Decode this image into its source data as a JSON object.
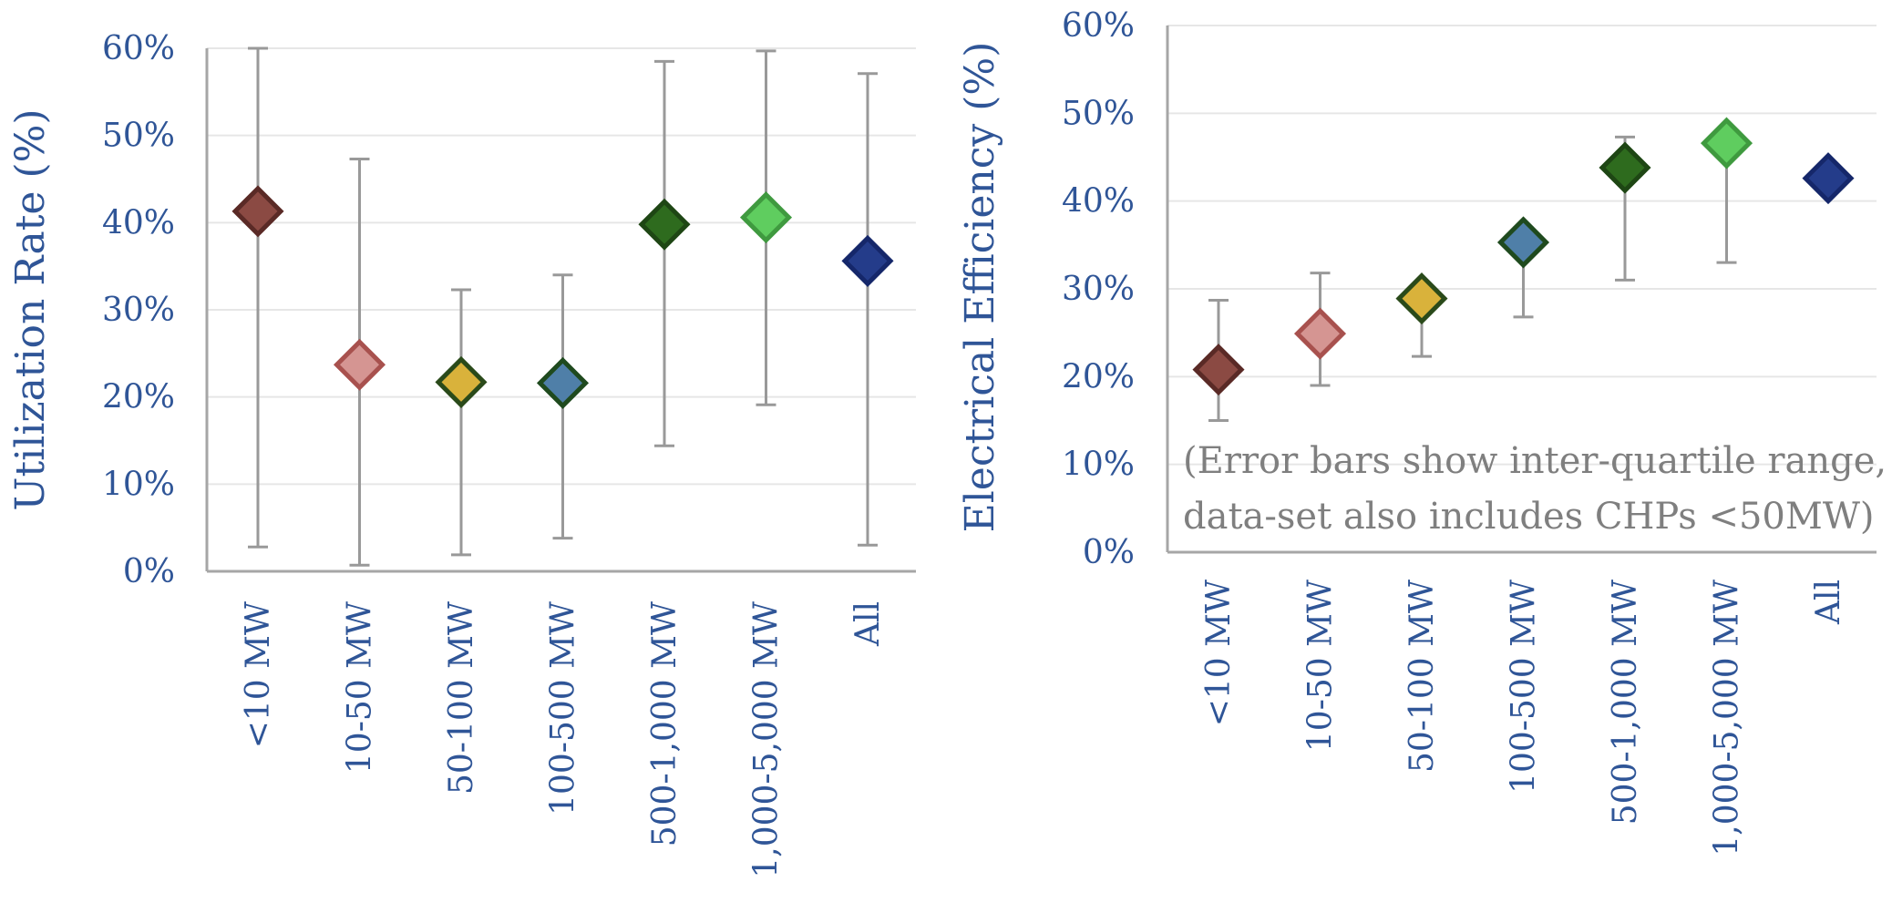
{
  "chart_data": [
    {
      "type": "scatter",
      "ylabel": "Utilization Rate (%)",
      "yticks": [
        "0%",
        "10%",
        "20%",
        "30%",
        "40%",
        "50%",
        "60%"
      ],
      "ylim": [
        0,
        60
      ],
      "grid": true,
      "categories": [
        "<10 MW",
        "10-50 MW",
        "50-100 MW",
        "100-500 MW",
        "500-1,000 MW",
        "1,000-5,000 MW",
        "All"
      ],
      "values": [
        41.3,
        23.7,
        21.7,
        21.6,
        39.8,
        40.6,
        35.6
      ],
      "error_low": [
        2.8,
        0.7,
        1.9,
        3.8,
        14.4,
        19.1,
        3.0
      ],
      "error_high": [
        60,
        47.3,
        32.3,
        34.0,
        58.5,
        59.7,
        57.1
      ],
      "marker": "diamond"
    },
    {
      "type": "scatter",
      "ylabel": "Electrical Efficiency (%)",
      "yticks": [
        "0%",
        "10%",
        "20%",
        "30%",
        "40%",
        "50%",
        "60%"
      ],
      "ylim": [
        0,
        60
      ],
      "grid": true,
      "categories": [
        "<10 MW",
        "10-50 MW",
        "50-100 MW",
        "100-500 MW",
        "500-1,000 MW",
        "1,000-5,000 MW",
        "All"
      ],
      "values": [
        20.8,
        24.9,
        28.9,
        35.3,
        43.8,
        46.6,
        42.6
      ],
      "error_low": [
        15.0,
        19.0,
        22.3,
        26.8,
        31.0,
        33.0,
        null
      ],
      "error_high": [
        28.7,
        31.8,
        29.5,
        37.0,
        47.3,
        48.0,
        null
      ],
      "marker": "diamond",
      "annotation": [
        "(Error bars show inter-quartile range,",
        "data-set also includes CHPs <50MW)"
      ]
    }
  ],
  "series_colors": [
    {
      "fill": "#8b4a43",
      "stroke": "#5a2a26"
    },
    {
      "fill": "#d59592",
      "stroke": "#a8514e"
    },
    {
      "fill": "#d9b23b",
      "stroke": "#2a4a1a"
    },
    {
      "fill": "#4f7fa8",
      "stroke": "#1f4a1e"
    },
    {
      "fill": "#2e6b1e",
      "stroke": "#1e4614"
    },
    {
      "fill": "#5fcd5f",
      "stroke": "#3f9a3f"
    },
    {
      "fill": "#243c8a",
      "stroke": "#15276a"
    }
  ]
}
